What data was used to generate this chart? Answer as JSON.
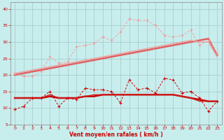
{
  "x": [
    0,
    1,
    2,
    3,
    4,
    5,
    6,
    7,
    8,
    9,
    10,
    11,
    12,
    13,
    14,
    15,
    16,
    17,
    18,
    19,
    20,
    21,
    22,
    23
  ],
  "line_upper_dotted": [
    20.5,
    19.5,
    19.5,
    21,
    25.5,
    23.5,
    24,
    28.5,
    29,
    29.5,
    31.5,
    30.5,
    33,
    37,
    36.5,
    36.5,
    35,
    32,
    31.5,
    32,
    33.5,
    29,
    30.5,
    26.5
  ],
  "line_upper_trend1": [
    20.0,
    20.5,
    21.0,
    21.5,
    22.0,
    22.5,
    23.0,
    23.5,
    24.0,
    24.5,
    25.0,
    25.5,
    26.0,
    26.5,
    27.0,
    27.5,
    28.0,
    28.5,
    29.0,
    29.5,
    30.0,
    30.5,
    31.0,
    26.0
  ],
  "line_upper_trend2": [
    20.5,
    21.0,
    21.5,
    22.0,
    22.5,
    23.0,
    23.5,
    24.0,
    24.5,
    25.0,
    25.5,
    26.0,
    26.5,
    27.0,
    27.5,
    28.0,
    28.5,
    29.0,
    29.5,
    30.0,
    30.5,
    30.0,
    30.0,
    25.5
  ],
  "line_lower_dotted": [
    9.5,
    10.5,
    13.0,
    13.0,
    15.0,
    10.5,
    13.0,
    12.5,
    16.0,
    15.5,
    15.5,
    15.0,
    11.5,
    18.5,
    15.5,
    16.0,
    14.5,
    19.0,
    18.5,
    14.5,
    15.0,
    13.0,
    9.0,
    12.0
  ],
  "line_lower_trend1": [
    13.0,
    13.0,
    13.0,
    13.0,
    13.5,
    13.0,
    13.0,
    13.0,
    13.5,
    13.5,
    14.0,
    14.0,
    14.0,
    14.0,
    14.0,
    14.0,
    14.0,
    14.0,
    14.0,
    13.5,
    13.0,
    12.5,
    12.0,
    12.0
  ],
  "line_lower_trend2": [
    13.0,
    13.0,
    13.0,
    13.0,
    14.0,
    13.0,
    13.0,
    13.0,
    13.5,
    14.0,
    14.0,
    14.0,
    14.0,
    14.0,
    14.0,
    14.0,
    14.0,
    14.0,
    14.0,
    13.5,
    13.0,
    12.0,
    12.0,
    12.0
  ],
  "ylim": [
    5,
    42
  ],
  "xlim": [
    -0.5,
    23.5
  ],
  "yticks": [
    5,
    10,
    15,
    20,
    25,
    30,
    35,
    40
  ],
  "xticks": [
    0,
    1,
    2,
    3,
    4,
    5,
    6,
    7,
    8,
    9,
    10,
    11,
    12,
    13,
    14,
    15,
    16,
    17,
    18,
    19,
    20,
    21,
    22,
    23
  ],
  "bgcolor": "#c8eded",
  "grid_color": "#a0c8c8",
  "color_light_pink": "#f0a0a0",
  "color_pink_medium": "#e06060",
  "color_red_dark": "#cc0000",
  "color_red_medium": "#cc2222",
  "xlabel": "Vent moyen/en rafales ( km/h )",
  "xlabel_color": "#cc0000",
  "tick_color": "#cc0000"
}
